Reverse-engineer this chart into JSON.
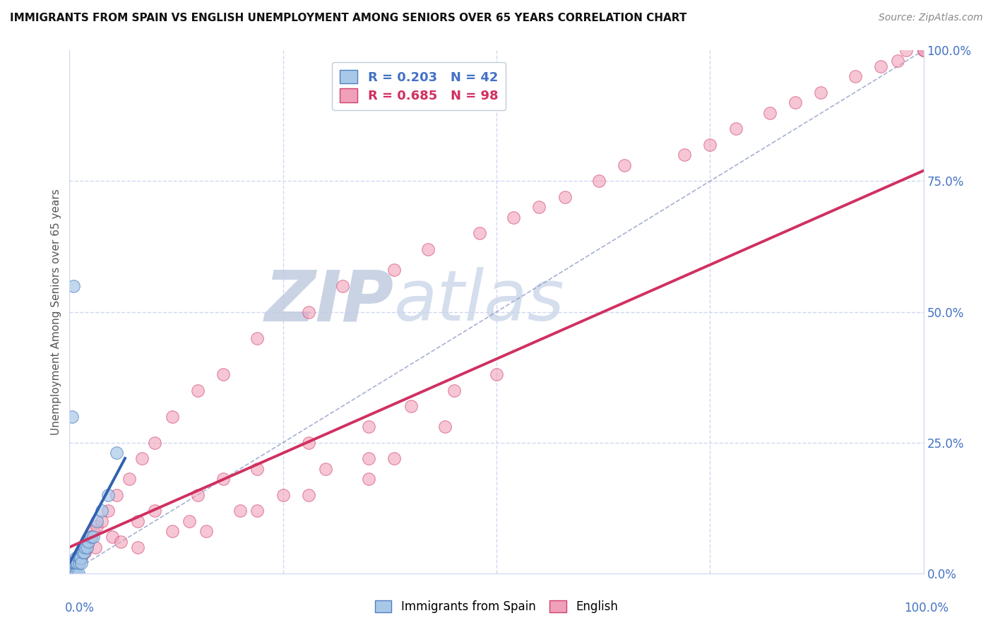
{
  "title": "IMMIGRANTS FROM SPAIN VS ENGLISH UNEMPLOYMENT AMONG SENIORS OVER 65 YEARS CORRELATION CHART",
  "source": "Source: ZipAtlas.com",
  "ylabel": "Unemployment Among Seniors over 65 years",
  "legend_label_blue": "R = 0.203   N = 42",
  "legend_label_pink": "R = 0.685   N = 98",
  "scatter_blue_fill": "#a8c8e8",
  "scatter_blue_edge": "#5080c0",
  "scatter_pink_fill": "#f0a0b8",
  "scatter_pink_edge": "#d04070",
  "line_blue_color": "#3060b0",
  "line_pink_color": "#d03060",
  "diagonal_color": "#8090c0",
  "axis_label_color": "#4472c4",
  "tick_color": "#4472c4",
  "grid_color": "#d0d8f0",
  "watermark_zip_color": "#c0cce0",
  "watermark_atlas_color": "#c8d4e8",
  "xlim": [
    0.0,
    1.0
  ],
  "ylim": [
    0.0,
    1.0
  ],
  "blue_x": [
    0.0,
    0.0,
    0.0,
    0.001,
    0.001,
    0.001,
    0.002,
    0.002,
    0.002,
    0.003,
    0.003,
    0.004,
    0.004,
    0.005,
    0.005,
    0.005,
    0.006,
    0.006,
    0.007,
    0.007,
    0.008,
    0.008,
    0.009,
    0.01,
    0.01,
    0.011,
    0.012,
    0.013,
    0.014,
    0.015,
    0.017,
    0.018,
    0.02,
    0.022,
    0.025,
    0.028,
    0.032,
    0.038,
    0.045,
    0.055,
    0.005,
    0.003
  ],
  "blue_y": [
    0.0,
    0.0,
    0.0,
    0.0,
    0.0,
    0.0,
    0.0,
    0.0,
    0.0,
    0.02,
    0.0,
    0.0,
    0.0,
    0.0,
    0.0,
    0.0,
    0.02,
    0.02,
    0.03,
    0.0,
    0.0,
    0.02,
    0.02,
    0.03,
    0.0,
    0.02,
    0.03,
    0.03,
    0.02,
    0.04,
    0.04,
    0.05,
    0.05,
    0.06,
    0.07,
    0.07,
    0.1,
    0.12,
    0.15,
    0.23,
    0.55,
    0.3
  ],
  "pink_x": [
    0.0,
    0.0,
    0.0,
    0.0,
    0.0,
    0.0,
    0.0,
    0.0,
    0.0,
    0.0,
    0.0,
    0.001,
    0.001,
    0.001,
    0.001,
    0.002,
    0.002,
    0.003,
    0.003,
    0.003,
    0.004,
    0.004,
    0.005,
    0.005,
    0.005,
    0.006,
    0.007,
    0.008,
    0.009,
    0.01,
    0.012,
    0.014,
    0.016,
    0.018,
    0.02,
    0.022,
    0.025,
    0.028,
    0.032,
    0.038,
    0.045,
    0.055,
    0.07,
    0.085,
    0.1,
    0.12,
    0.15,
    0.18,
    0.22,
    0.28,
    0.32,
    0.38,
    0.42,
    0.48,
    0.52,
    0.55,
    0.58,
    0.62,
    0.65,
    0.72,
    0.75,
    0.78,
    0.82,
    0.85,
    0.88,
    0.92,
    0.95,
    0.97,
    0.98,
    1.0,
    1.0,
    1.0,
    0.03,
    0.05,
    0.06,
    0.08,
    0.1,
    0.15,
    0.18,
    0.22,
    0.28,
    0.35,
    0.4,
    0.45,
    0.5,
    0.3,
    0.35,
    0.2,
    0.25,
    0.12,
    0.14,
    0.08,
    0.38,
    0.44,
    0.35,
    0.28,
    0.16,
    0.22
  ],
  "pink_y": [
    0.0,
    0.0,
    0.0,
    0.0,
    0.0,
    0.0,
    0.0,
    0.0,
    0.0,
    0.0,
    0.02,
    0.0,
    0.0,
    0.0,
    0.0,
    0.0,
    0.0,
    0.0,
    0.0,
    0.02,
    0.0,
    0.0,
    0.0,
    0.0,
    0.0,
    0.0,
    0.02,
    0.02,
    0.02,
    0.02,
    0.03,
    0.03,
    0.04,
    0.04,
    0.05,
    0.06,
    0.07,
    0.08,
    0.09,
    0.1,
    0.12,
    0.15,
    0.18,
    0.22,
    0.25,
    0.3,
    0.35,
    0.38,
    0.45,
    0.5,
    0.55,
    0.58,
    0.62,
    0.65,
    0.68,
    0.7,
    0.72,
    0.75,
    0.78,
    0.8,
    0.82,
    0.85,
    0.88,
    0.9,
    0.92,
    0.95,
    0.97,
    0.98,
    1.0,
    1.0,
    1.0,
    1.0,
    0.05,
    0.07,
    0.06,
    0.1,
    0.12,
    0.15,
    0.18,
    0.2,
    0.25,
    0.28,
    0.32,
    0.35,
    0.38,
    0.2,
    0.22,
    0.12,
    0.15,
    0.08,
    0.1,
    0.05,
    0.22,
    0.28,
    0.18,
    0.15,
    0.08,
    0.12
  ],
  "blue_line_x": [
    0.0,
    0.065
  ],
  "blue_line_y": [
    0.02,
    0.22
  ],
  "pink_line_x": [
    0.0,
    1.0
  ],
  "pink_line_y": [
    0.05,
    0.77
  ]
}
